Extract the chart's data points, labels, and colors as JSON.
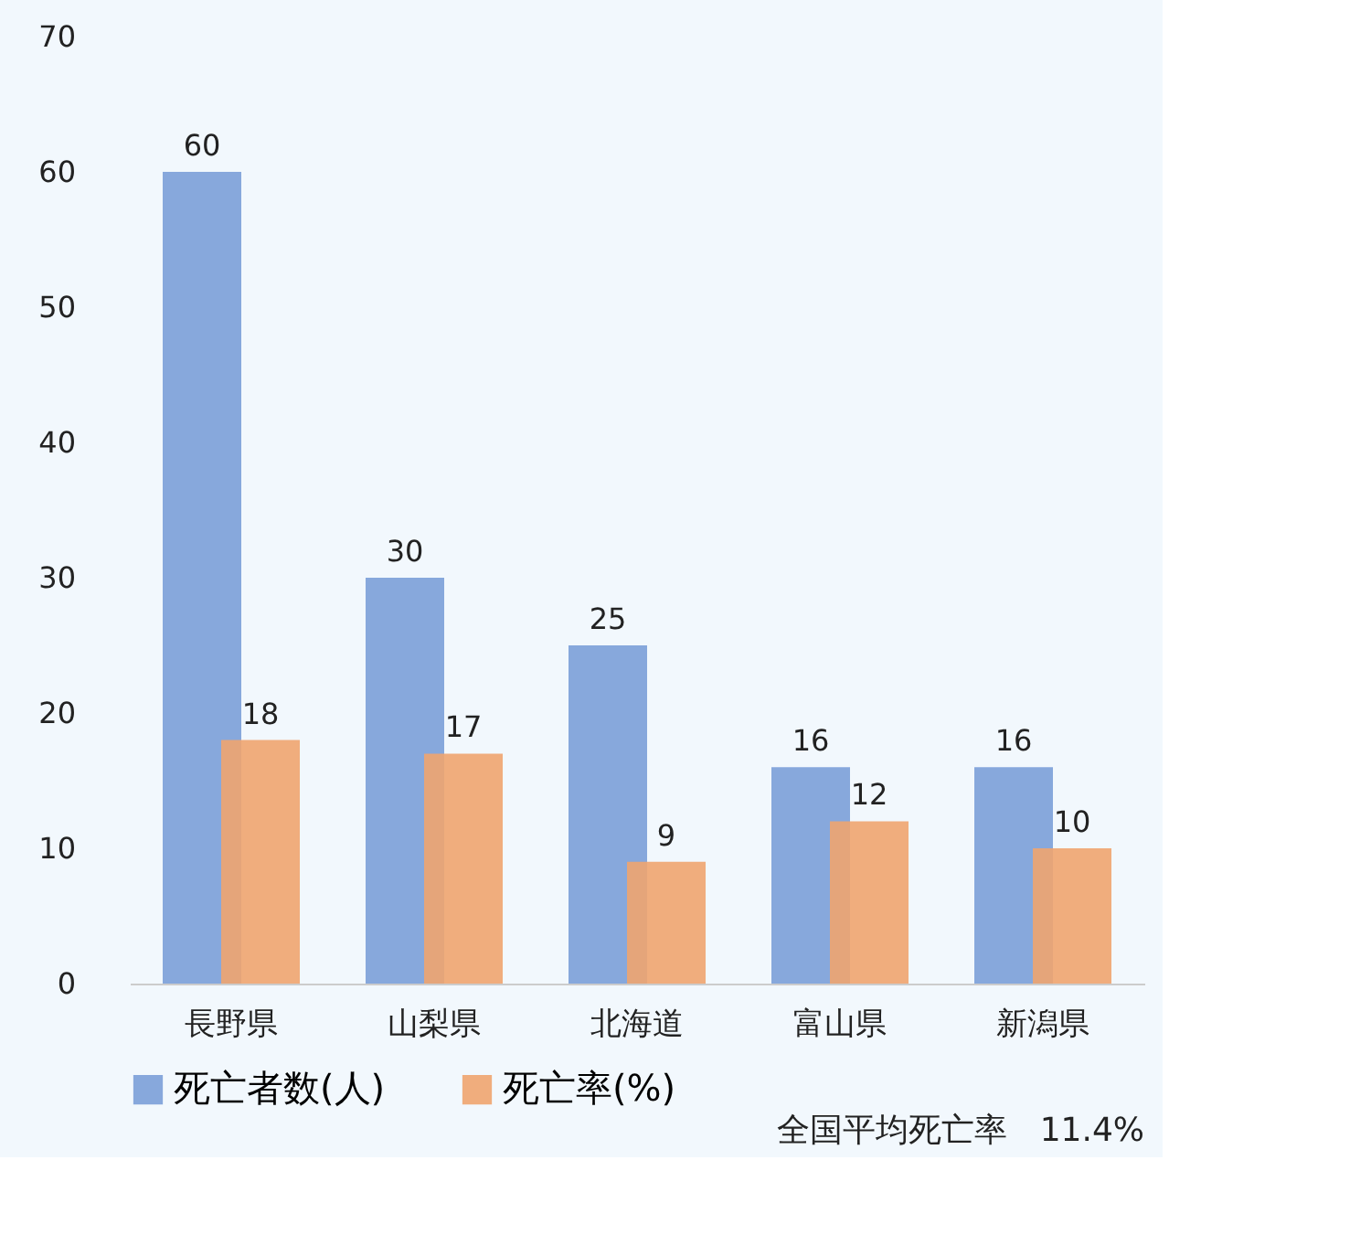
{
  "chart_data": {
    "type": "bar",
    "categories": [
      "長野県",
      "山梨県",
      "北海道",
      "富山県",
      "新潟県"
    ],
    "series": [
      {
        "name": "死亡者数(人)",
        "color": "#7b9fd8",
        "values": [
          60,
          30,
          25,
          16,
          16
        ]
      },
      {
        "name": "死亡率(%)",
        "color": "#f0a46f",
        "values": [
          18,
          17,
          9,
          12,
          10
        ]
      }
    ],
    "ylim": [
      0,
      70
    ],
    "yticks": [
      0,
      10,
      20,
      30,
      40,
      50,
      60,
      70
    ],
    "grid": false,
    "data_labels": true,
    "legend": "bottom",
    "annotations": [
      "全国平均死亡率　11.4%"
    ]
  }
}
